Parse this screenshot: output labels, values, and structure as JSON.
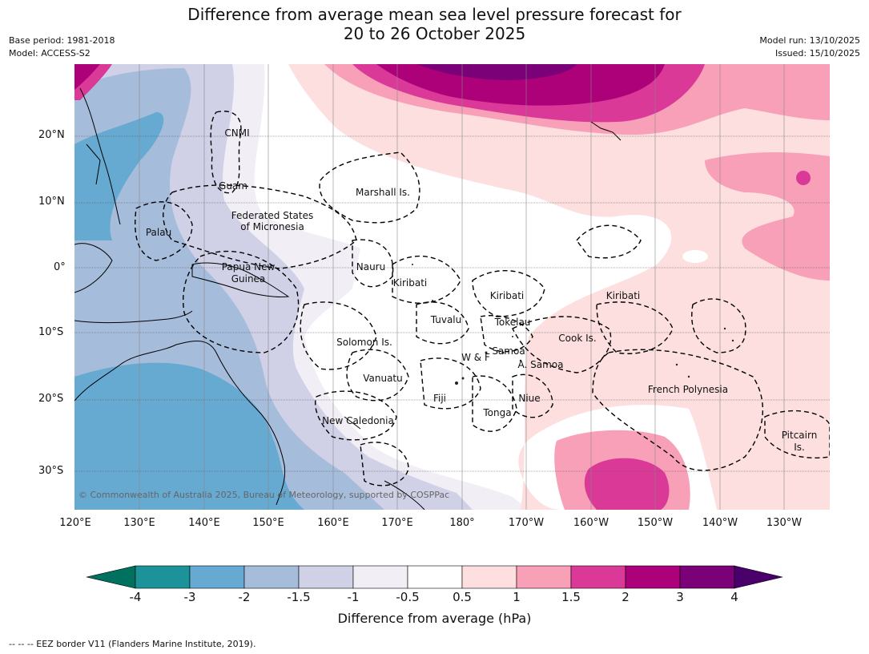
{
  "header": {
    "title_line1": "Difference from average mean sea level pressure forecast for",
    "title_line2": "20 to 26 October 2025",
    "base_period": "Base period: 1981-2018",
    "model": "Model: ACCESS-S2",
    "model_run": "Model run: 13/10/2025",
    "issued": "Issued: 15/10/2025"
  },
  "axes": {
    "lat_labels": [
      "20°N",
      "10°N",
      "0°",
      "10°S",
      "20°S",
      "30°S"
    ],
    "lon_labels": [
      "120°E",
      "130°E",
      "140°E",
      "150°E",
      "160°E",
      "170°E",
      "180°",
      "170°W",
      "160°W",
      "150°W",
      "140°W",
      "130°W"
    ]
  },
  "places": {
    "cnmi": "CNMI",
    "guam": "Guam",
    "marshall": "Marshall Is.",
    "fsm_1": "Federated States",
    "fsm_2": "of Micronesia",
    "palau": "Palau",
    "png_1": "Papua New",
    "png_2": "Guinea",
    "nauru": "Nauru",
    "kiribati_w": "Kiribati",
    "kiribati_c": "Kiribati",
    "kiribati_e": "Kiribati",
    "tuvalu": "Tuvalu",
    "tokelau": "Tokelau",
    "solomon": "Solomon Is.",
    "cook": "Cook Is.",
    "samoa": "Samoa",
    "wf": "W & F",
    "asamoa": "A. Samoa",
    "vanuatu": "Vanuatu",
    "fiji": "Fiji",
    "niue": "Niue",
    "tonga": "Tonga",
    "frpoly": "French Polynesia",
    "newcal": "New Caledonia",
    "pitcairn_1": "Pitcairn",
    "pitcairn_2": "Is."
  },
  "copyright": "© Commonwealth of Australia 2025, Bureau of Meteorology, supported by COSPPac",
  "colorbar": {
    "ticks": [
      "-4",
      "-3",
      "-2",
      "-1.5",
      "-1",
      "-0.5",
      "0.5",
      "1",
      "1.5",
      "2",
      "3",
      "4"
    ],
    "label": "Difference from average (hPa)",
    "colors": {
      "below_min": "#00705f",
      "n4_n3": "#1b9399",
      "n3_n2": "#66a9d1",
      "n2_n15": "#a6bcdb",
      "n15_n1": "#d0d1e6",
      "n1_n05": "#f1eef6",
      "n05_05": "#ffffff",
      "p05_1": "#fddfdf",
      "p1_15": "#f8a0b8",
      "p15_2": "#db3998",
      "p2_3": "#ad0179",
      "p3_4": "#7a0177",
      "above_max": "#49006a"
    }
  },
  "footer": "--  --  -- EEZ border V11 (Flanders Marine Institute, 2019)."
}
